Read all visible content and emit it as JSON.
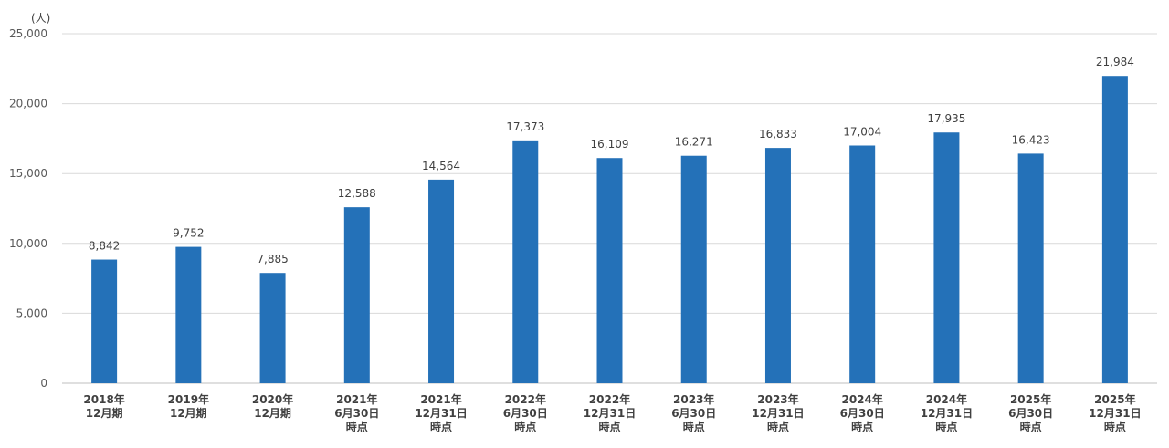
{
  "chart_data": {
    "type": "bar",
    "unit_label": "(人)",
    "categories": [
      [
        "2018年",
        "12月期"
      ],
      [
        "2019年",
        "12月期"
      ],
      [
        "2020年",
        "12月期"
      ],
      [
        "2021年",
        "6月30日",
        "時点"
      ],
      [
        "2021年",
        "12月31日",
        "時点"
      ],
      [
        "2022年",
        "6月30日",
        "時点"
      ],
      [
        "2022年",
        "12月31日",
        "時点"
      ],
      [
        "2023年",
        "6月30日",
        "時点"
      ],
      [
        "2023年",
        "12月31日",
        "時点"
      ],
      [
        "2024年",
        "6月30日",
        "時点"
      ],
      [
        "2024年",
        "12月31日",
        "時点"
      ],
      [
        "2025年",
        "6月30日",
        "時点"
      ],
      [
        "2025年",
        "12月31日",
        "時点"
      ]
    ],
    "values": [
      8842,
      9752,
      7885,
      12588,
      14564,
      17373,
      16109,
      16271,
      16833,
      17004,
      17935,
      16423,
      21984
    ],
    "data_labels": [
      "8,842",
      "9,752",
      "7,885",
      "12,588",
      "14,564",
      "17,373",
      "16,109",
      "16,271",
      "16,833",
      "17,004",
      "17,935",
      "16,423",
      "21,984"
    ],
    "yticks": [
      0,
      5000,
      10000,
      15000,
      20000,
      25000
    ],
    "ytick_labels": [
      "0",
      "5,000",
      "10,000",
      "15,000",
      "20,000",
      "25,000"
    ],
    "ylim": [
      0,
      25000
    ],
    "grid": true,
    "bar_color": "#2471b8",
    "grid_color": "#d9d9d9"
  }
}
